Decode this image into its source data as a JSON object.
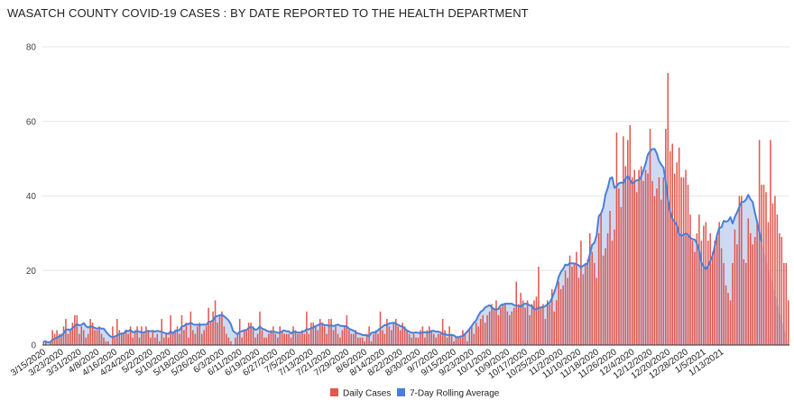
{
  "chart_data": {
    "type": "bar",
    "title": "WASATCH COUNTY COVID-19 CASES : BY DATE REPORTED TO THE HEALTH DEPARTMENT",
    "xlabel": "",
    "ylabel": "",
    "ylim": [
      0,
      80
    ],
    "yticks": [
      0,
      20,
      40,
      60,
      80
    ],
    "grid": true,
    "legend_position": "bottom",
    "colors": {
      "bars": "#e0584f",
      "line": "#4a7fd8",
      "fill": "#c6d3f0"
    },
    "x_start": "3/15/2020",
    "tick_labels": [
      "3/15/2020",
      "3/23/2020",
      "3/31/2020",
      "4/8/2020",
      "4/16/2020",
      "4/24/2020",
      "5/2/2020",
      "5/10/2020",
      "5/18/2020",
      "5/26/2020",
      "6/3/2020",
      "6/11/2020",
      "6/19/2020",
      "6/27/2020",
      "7/5/2020",
      "7/13/2020",
      "7/21/2020",
      "7/29/2020",
      "8/6/2020",
      "8/14/2020",
      "8/22/2020",
      "8/30/2020",
      "9/7/2020",
      "9/15/2020",
      "9/23/2020",
      "10/1/2020",
      "10/9/2020",
      "10/17/2020",
      "10/25/2020",
      "11/2/2020",
      "11/10/2020",
      "11/18/2020",
      "11/26/2020",
      "12/4/2020",
      "12/12/2020",
      "12/20/2020",
      "12/28/2020",
      "1/5/2021",
      "1/13/2021"
    ],
    "series": [
      {
        "name": "Daily Cases",
        "kind": "bar",
        "values": [
          1,
          1,
          0,
          1,
          4,
          3,
          4,
          3,
          3,
          5,
          7,
          3,
          4,
          6,
          8,
          8,
          3,
          5,
          4,
          2,
          3,
          7,
          6,
          4,
          4,
          5,
          3,
          2,
          1,
          1,
          0,
          5,
          2,
          7,
          4,
          3,
          3,
          4,
          3,
          5,
          2,
          4,
          5,
          2,
          5,
          3,
          5,
          4,
          2,
          4,
          2,
          3,
          1,
          7,
          2,
          3,
          2,
          8,
          3,
          4,
          5,
          3,
          8,
          4,
          6,
          2,
          9,
          4,
          3,
          5,
          6,
          3,
          4,
          5,
          10,
          6,
          9,
          12,
          6,
          8,
          9,
          5,
          3,
          2,
          1,
          0,
          2,
          3,
          7,
          2,
          4,
          4,
          6,
          6,
          5,
          2,
          3,
          9,
          4,
          2,
          2,
          3,
          4,
          5,
          3,
          2,
          5,
          4,
          3,
          3,
          3,
          2,
          5,
          4,
          3,
          3,
          4,
          3,
          9,
          3,
          6,
          6,
          5,
          4,
          7,
          6,
          5,
          3,
          7,
          7,
          4,
          5,
          3,
          2,
          4,
          5,
          8,
          4,
          3,
          3,
          4,
          2,
          2,
          2,
          1,
          3,
          5,
          1,
          3,
          4,
          3,
          9,
          4,
          3,
          7,
          5,
          4,
          6,
          7,
          5,
          4,
          6,
          5,
          4,
          3,
          2,
          3,
          2,
          2,
          4,
          5,
          2,
          4,
          5,
          4,
          3,
          2,
          3,
          3,
          7,
          4,
          2,
          5,
          3,
          1,
          2,
          2,
          2,
          4,
          3,
          1,
          4,
          5,
          3,
          6,
          5,
          7,
          8,
          6,
          8,
          9,
          11,
          10,
          12,
          8,
          10,
          11,
          11,
          9,
          8,
          9,
          10,
          17,
          11,
          14,
          12,
          10,
          12,
          8,
          11,
          12,
          13,
          21,
          10,
          11,
          7,
          12,
          11,
          15,
          9,
          12,
          17,
          15,
          16,
          20,
          18,
          24,
          21,
          22,
          25,
          18,
          28,
          19,
          22,
          23,
          30,
          25,
          22,
          18,
          30,
          35,
          24,
          26,
          30,
          36,
          28,
          31,
          57,
          42,
          37,
          56,
          48,
          55,
          59,
          45,
          47,
          41,
          47,
          48,
          44,
          47,
          46,
          58,
          44,
          40,
          42,
          45,
          39,
          45,
          58,
          73,
          52,
          54,
          46,
          49,
          53,
          45,
          45,
          47,
          43,
          35,
          28,
          25,
          30,
          35,
          28,
          32,
          33,
          28,
          30,
          25,
          28,
          29,
          33,
          26,
          22,
          16,
          14,
          12,
          22,
          31,
          27,
          40,
          40,
          23,
          22,
          34,
          30,
          27,
          29,
          33,
          55,
          43,
          43,
          41,
          33,
          55,
          38,
          40,
          35,
          30,
          29,
          22,
          22,
          12
        ]
      },
      {
        "name": "7-Day Rolling Average",
        "kind": "line",
        "values": [
          1.0,
          1.0,
          0.7,
          0.8,
          1.4,
          1.7,
          2.0,
          2.3,
          2.6,
          3.1,
          4.1,
          4.2,
          4.0,
          4.6,
          5.1,
          5.6,
          5.3,
          5.4,
          5.9,
          5.1,
          4.7,
          5.0,
          4.9,
          4.6,
          4.4,
          4.6,
          4.4,
          4.4,
          3.6,
          2.9,
          2.3,
          2.1,
          2.3,
          2.6,
          2.9,
          3.1,
          3.1,
          3.9,
          3.7,
          4.1,
          3.4,
          3.5,
          3.8,
          3.5,
          3.5,
          3.3,
          3.7,
          3.8,
          3.7,
          3.8,
          3.6,
          3.8,
          3.7,
          3.5,
          3.3,
          3.1,
          3.0,
          3.7,
          3.1,
          3.8,
          3.9,
          4.0,
          5.0,
          5.1,
          5.7,
          5.6,
          6.0,
          5.6,
          5.4,
          5.5,
          5.3,
          5.5,
          5.5,
          5.4,
          6.2,
          6.3,
          6.6,
          7.6,
          7.8,
          8.0,
          8.1,
          7.7,
          7.2,
          6.6,
          5.6,
          3.8,
          3.3,
          2.9,
          3.6,
          3.7,
          4.0,
          4.0,
          4.6,
          4.9,
          4.6,
          4.1,
          4.3,
          5.0,
          4.4,
          4.2,
          3.9,
          3.6,
          3.5,
          3.6,
          3.5,
          3.3,
          3.3,
          3.7,
          3.9,
          3.7,
          3.7,
          3.1,
          3.6,
          3.5,
          3.4,
          3.3,
          3.6,
          3.7,
          4.3,
          4.2,
          4.5,
          4.7,
          5.1,
          5.3,
          5.7,
          5.7,
          5.3,
          5.4,
          5.1,
          5.3,
          5.1,
          5.3,
          5.5,
          5.2,
          5.1,
          5.1,
          5.0,
          4.4,
          4.1,
          3.9,
          3.4,
          3.1,
          3.0,
          2.7,
          2.7,
          2.6,
          2.4,
          3.3,
          3.4,
          3.4,
          4.0,
          4.5,
          4.9,
          5.4,
          5.3,
          5.8,
          5.9,
          6.0,
          5.8,
          5.4,
          5.1,
          4.9,
          4.4,
          3.9,
          3.6,
          3.3,
          3.3,
          3.4,
          3.3,
          3.2,
          3.4,
          3.4,
          3.4,
          3.4,
          3.8,
          3.8,
          3.6,
          3.6,
          3.4,
          2.9,
          3.0,
          2.7,
          2.7,
          2.7,
          2.6,
          2.1,
          2.1,
          2.3,
          2.4,
          3.0,
          3.6,
          4.3,
          5.1,
          6.0,
          6.6,
          7.9,
          8.9,
          9.3,
          10.1,
          10.4,
          10.7,
          10.1,
          9.6,
          9.5,
          9.7,
          10.7,
          10.9,
          11.1,
          11.1,
          11.1,
          11.1,
          10.7,
          10.6,
          10.5,
          10.3,
          10.9,
          11.1,
          11.1,
          10.6,
          10.5,
          9.6,
          9.6,
          10.0,
          10.1,
          10.2,
          10.4,
          11.0,
          11.4,
          12.6,
          14.1,
          15.9,
          18.3,
          19.6,
          20.4,
          21.6,
          21.4,
          22.0,
          21.9,
          21.9,
          21.7,
          21.4,
          20.8,
          21.3,
          21.6,
          22.0,
          24.4,
          26.9,
          27.4,
          29.4,
          34.6,
          35.3,
          36.9,
          40.4,
          42.1,
          44.7,
          45.0,
          42.2,
          42.6,
          43.4,
          43.6,
          43.4,
          44.7,
          45.3,
          44.3,
          43.3,
          43.8,
          44.2,
          44.3,
          45.2,
          46.9,
          48.7,
          51.1,
          52.0,
          52.6,
          52.6,
          51.4,
          49.4,
          48.4,
          47.6,
          43.9,
          39.0,
          35.7,
          33.9,
          33.0,
          32.2,
          29.8,
          29.3,
          29.6,
          29.9,
          29.6,
          28.8,
          28.4,
          28.3,
          27.2,
          25.3,
          22.1,
          21.1,
          20.3,
          21.2,
          22.6,
          24.0,
          26.6,
          29.5,
          31.4,
          31.6,
          33.3,
          33.1,
          33.3,
          34.3,
          32.6,
          34.4,
          35.6,
          37.1,
          38.4,
          38.4,
          39.0,
          40.3,
          39.1,
          38.4,
          35.5,
          33.0,
          30.3,
          27.7
        ]
      }
    ]
  }
}
